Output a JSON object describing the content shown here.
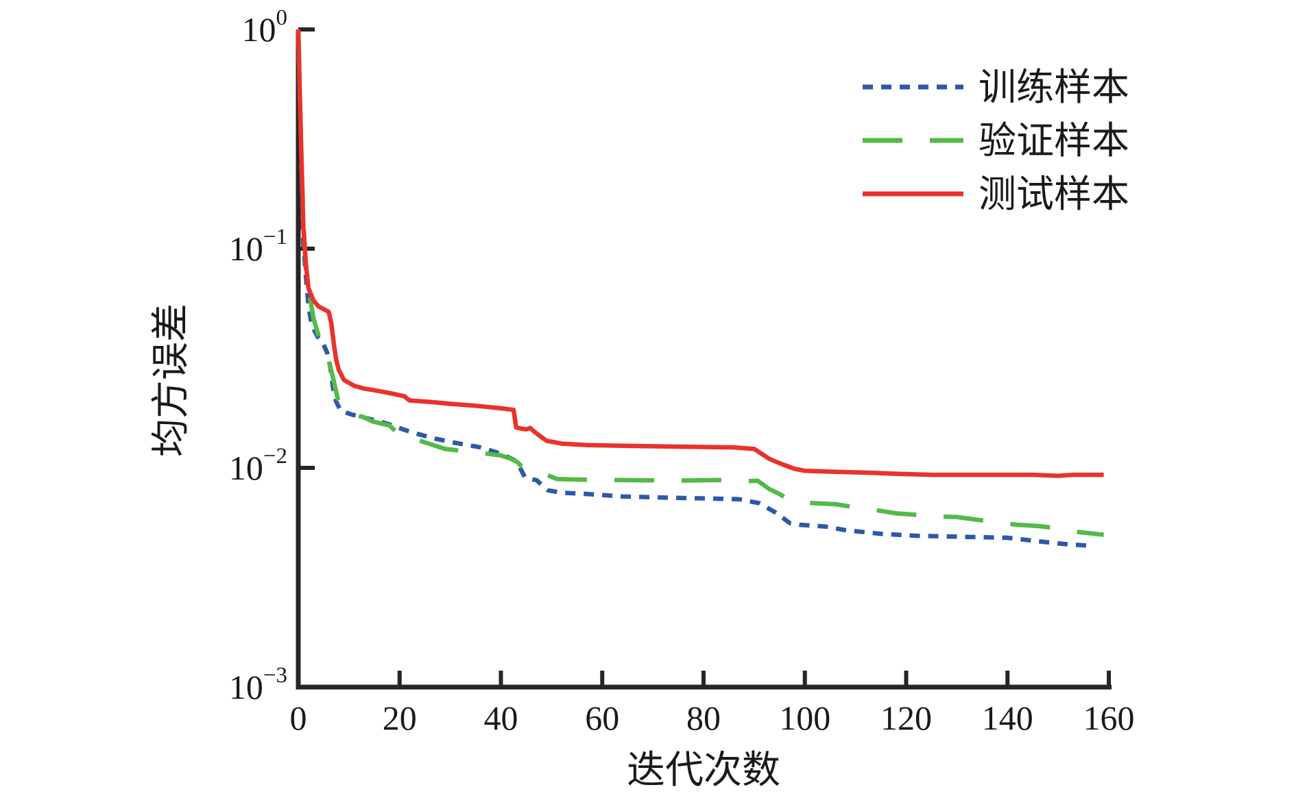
{
  "chart_data": {
    "type": "line",
    "title": "",
    "xlabel": "迭代次数",
    "ylabel": "均方误差",
    "x_ticks": [
      0,
      20,
      40,
      60,
      80,
      100,
      120,
      140,
      160
    ],
    "xlim": [
      0,
      160
    ],
    "ylim": [
      0.001,
      1
    ],
    "y_scale": "log",
    "y_tick_exponents": [
      0,
      -1,
      -2,
      -3
    ],
    "grid": false,
    "legend_position": "top-right",
    "axis_color": "#262626",
    "series": [
      {
        "name": "训练样本",
        "color": "#2e59a8",
        "dash": "dashed",
        "points": [
          [
            0,
            0.95
          ],
          [
            0.7,
            0.2
          ],
          [
            1,
            0.105
          ],
          [
            1.5,
            0.075
          ],
          [
            2,
            0.055
          ],
          [
            2.5,
            0.047
          ],
          [
            3,
            0.043
          ],
          [
            4,
            0.039
          ],
          [
            5,
            0.0365
          ],
          [
            5.7,
            0.0335
          ],
          [
            6.3,
            0.029
          ],
          [
            7,
            0.022
          ],
          [
            7.5,
            0.02
          ],
          [
            8.4,
            0.0182
          ],
          [
            10.6,
            0.0175
          ],
          [
            13.3,
            0.0169
          ],
          [
            16,
            0.0163
          ],
          [
            18.3,
            0.0157
          ],
          [
            21,
            0.0149
          ],
          [
            23,
            0.0144
          ],
          [
            27,
            0.0136
          ],
          [
            31,
            0.013
          ],
          [
            36,
            0.0124
          ],
          [
            40,
            0.0116
          ],
          [
            42.5,
            0.0109
          ],
          [
            43.3,
            0.0105
          ],
          [
            44.7,
            0.0091
          ],
          [
            45.5,
            0.0089
          ],
          [
            47,
            0.0088
          ],
          [
            48.5,
            0.0082
          ],
          [
            49.3,
            0.0079
          ],
          [
            52,
            0.0077
          ],
          [
            57,
            0.0076
          ],
          [
            64,
            0.0074
          ],
          [
            74,
            0.0073
          ],
          [
            87,
            0.0072
          ],
          [
            91,
            0.0069
          ],
          [
            94.5,
            0.0062
          ],
          [
            97,
            0.0056
          ],
          [
            99,
            0.0055
          ],
          [
            104,
            0.0054
          ],
          [
            108,
            0.0052
          ],
          [
            115,
            0.005
          ],
          [
            122,
            0.0049
          ],
          [
            131,
            0.00485
          ],
          [
            140,
            0.0048
          ],
          [
            147,
            0.0046
          ],
          [
            151,
            0.0045
          ],
          [
            157,
            0.0044
          ]
        ]
      },
      {
        "name": "验证样本",
        "color": "#54b948",
        "dash": "long-dash",
        "points": [
          [
            0,
            1.0
          ],
          [
            0.7,
            0.22
          ],
          [
            1,
            0.135
          ],
          [
            1.6,
            0.073
          ],
          [
            2,
            0.066
          ],
          [
            3,
            0.048
          ],
          [
            4,
            0.04
          ],
          [
            5,
            0.035
          ],
          [
            6,
            0.031
          ],
          [
            7,
            0.025
          ],
          [
            7.7,
            0.021
          ],
          [
            8.5,
            0.019
          ],
          [
            10,
            0.0178
          ],
          [
            13,
            0.017
          ],
          [
            14.6,
            0.0163
          ],
          [
            18,
            0.0156
          ],
          [
            19.5,
            0.0145
          ],
          [
            20.5,
            0.0139
          ],
          [
            22,
            0.0137
          ],
          [
            24,
            0.0133
          ],
          [
            29,
            0.0122
          ],
          [
            33,
            0.0119
          ],
          [
            36,
            0.0117
          ],
          [
            40,
            0.0114
          ],
          [
            42,
            0.011
          ],
          [
            43.3,
            0.0106
          ],
          [
            44,
            0.0102
          ],
          [
            45,
            0.01
          ],
          [
            48,
            0.0095
          ],
          [
            49,
            0.0093
          ],
          [
            50.5,
            0.009
          ],
          [
            51,
            0.0089
          ],
          [
            55,
            0.00885
          ],
          [
            63,
            0.0088
          ],
          [
            75,
            0.00875
          ],
          [
            83,
            0.0088
          ],
          [
            88,
            0.0087
          ],
          [
            90.7,
            0.00873
          ],
          [
            93,
            0.008
          ],
          [
            95,
            0.0076
          ],
          [
            97.2,
            0.00706
          ],
          [
            98,
            0.00703
          ],
          [
            102,
            0.0069
          ],
          [
            106,
            0.00683
          ],
          [
            110,
            0.0066
          ],
          [
            114,
            0.00642
          ],
          [
            118,
            0.0062
          ],
          [
            122,
            0.00611
          ],
          [
            126,
            0.006
          ],
          [
            130,
            0.00597
          ],
          [
            134,
            0.0058
          ],
          [
            138,
            0.00563
          ],
          [
            142,
            0.0055
          ],
          [
            146,
            0.00543
          ],
          [
            150,
            0.0053
          ],
          [
            154,
            0.0051
          ],
          [
            159,
            0.00495
          ]
        ]
      },
      {
        "name": "测试样本",
        "color": "#ea322b",
        "dash": "solid",
        "points": [
          [
            0,
            1.0
          ],
          [
            0.4,
            0.4
          ],
          [
            1,
            0.125
          ],
          [
            1.5,
            0.085
          ],
          [
            2,
            0.066
          ],
          [
            3,
            0.058
          ],
          [
            4,
            0.0545
          ],
          [
            5,
            0.053
          ],
          [
            6,
            0.0515
          ],
          [
            6.5,
            0.046
          ],
          [
            7,
            0.037
          ],
          [
            7.5,
            0.031
          ],
          [
            8,
            0.028
          ],
          [
            9,
            0.0252
          ],
          [
            11,
            0.0237
          ],
          [
            13,
            0.023
          ],
          [
            16,
            0.0224
          ],
          [
            19,
            0.0217
          ],
          [
            21,
            0.0212
          ],
          [
            21.5,
            0.0207
          ],
          [
            22,
            0.0203
          ],
          [
            26,
            0.02
          ],
          [
            30,
            0.0196
          ],
          [
            35,
            0.0192
          ],
          [
            40,
            0.0187
          ],
          [
            42.5,
            0.0184
          ],
          [
            43,
            0.0153
          ],
          [
            44,
            0.0151
          ],
          [
            45,
            0.015
          ],
          [
            45.8,
            0.0152
          ],
          [
            46.5,
            0.0147
          ],
          [
            48,
            0.0138
          ],
          [
            49,
            0.0133
          ],
          [
            52,
            0.0129
          ],
          [
            57,
            0.0127
          ],
          [
            65,
            0.0126
          ],
          [
            75,
            0.0125
          ],
          [
            86,
            0.0124
          ],
          [
            90,
            0.0122
          ],
          [
            93,
            0.011
          ],
          [
            95,
            0.0105
          ],
          [
            98,
            0.0099
          ],
          [
            100,
            0.0097
          ],
          [
            106,
            0.0096
          ],
          [
            113,
            0.0095
          ],
          [
            118,
            0.0094
          ],
          [
            125,
            0.0093
          ],
          [
            135,
            0.0093
          ],
          [
            145,
            0.0093
          ],
          [
            150,
            0.0092
          ],
          [
            153,
            0.0093
          ],
          [
            159,
            0.0093
          ]
        ]
      }
    ]
  }
}
